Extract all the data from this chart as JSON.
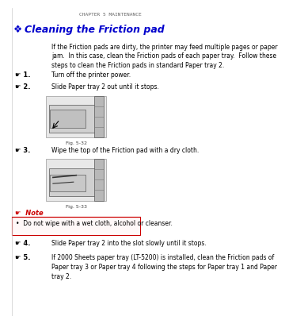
{
  "bg_color": "#ffffff",
  "header_text": "CHAPTER 5 MAINTENANCE",
  "title_symbol": "❖",
  "title_text": "Cleaning the Friction pad",
  "title_color": "#0000cc",
  "body_indent": 0.32,
  "intro_text": "If the Friction pads are dirty, the printer may feed multiple pages or paper\njam.  In this case, clean the Friction pads of each paper tray.  Follow these\nsteps to clean the Friction pads in standard Paper tray 2.",
  "step_symbol": "☛",
  "steps": [
    {
      "num": "1.",
      "text": "Turn off the printer power."
    },
    {
      "num": "2.",
      "text": "Slide Paper tray 2 out until it stops."
    },
    {
      "num": "3.",
      "text": "Wipe the top of the Friction pad with a dry cloth."
    },
    {
      "num": "4.",
      "text": "Slide Paper tray 2 into the slot slowly until it stops."
    },
    {
      "num": "5.",
      "text": "If 2000 Sheets paper tray (LT-5200) is installed, clean the Friction pads of\nPaper tray 3 or Paper tray 4 following the steps for Paper tray 1 and Paper\ntray 2."
    }
  ],
  "fig_labels": [
    "Fig. 5-32",
    "Fig. 5-33"
  ],
  "note_symbol": "☛",
  "note_label": "Note",
  "note_color": "#cc0000",
  "note_text": "Do not wipe with a wet cloth, alcohol or cleanser.",
  "note_bullet": "•",
  "text_color": "#000000",
  "small_text_color": "#555555",
  "font_size_header": 4.5,
  "font_size_title": 9,
  "font_size_body": 5.5,
  "font_size_step_num": 6,
  "font_size_fig": 4.5,
  "font_size_note": 6
}
